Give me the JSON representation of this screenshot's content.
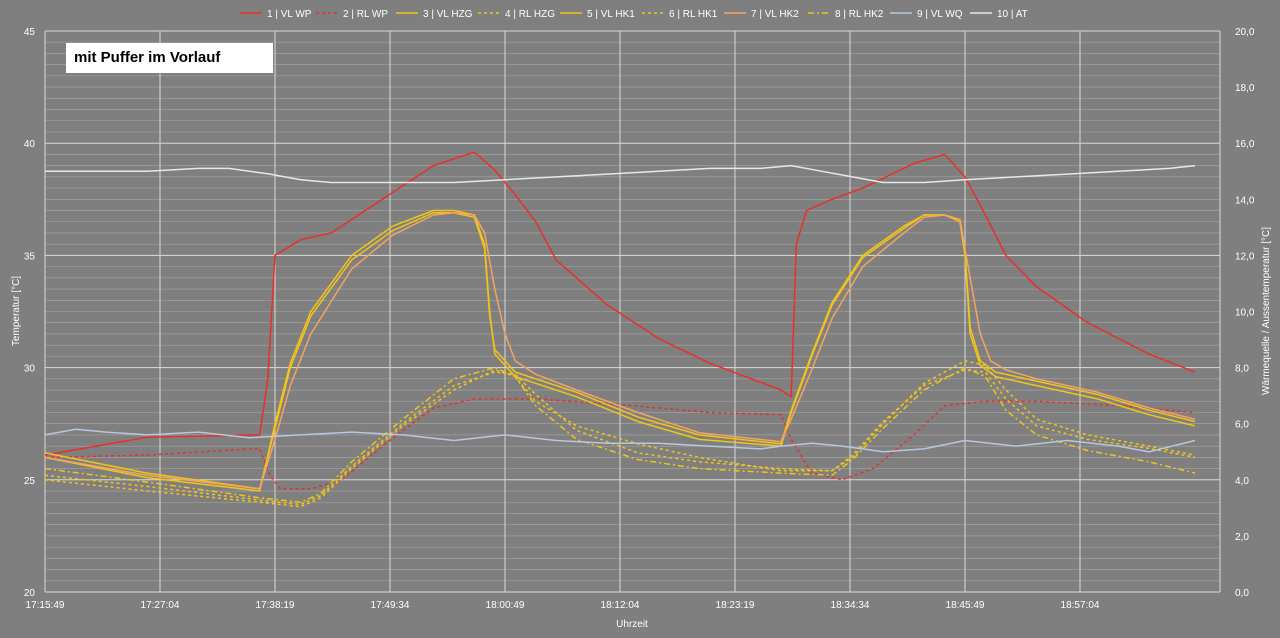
{
  "chart_data": {
    "type": "line",
    "annotation": "mit Puffer im Vorlauf",
    "xlabel": "Uhrzeit",
    "ylabel_left": "Temperatur [°C]",
    "ylabel_right": "Wärmequelle / Aussentemperatur [°C]",
    "ylim_left": [
      20,
      45
    ],
    "ylim_right": [
      0,
      20
    ],
    "left_ticks": [
      "20",
      "25",
      "30",
      "35",
      "40",
      "45"
    ],
    "right_ticks": [
      "0,0",
      "2,0",
      "4,0",
      "6,0",
      "8,0",
      "10,0",
      "12,0",
      "14,0",
      "16,0",
      "18,0",
      "20,0"
    ],
    "x_tick_labels": [
      "17:15:49",
      "17:27:04",
      "17:38:19",
      "17:49:34",
      "18:00:49",
      "18:12:04",
      "18:23:19",
      "18:34:34",
      "18:45:49",
      "18:57:04"
    ],
    "x_unit": "minutes after 17:15:49",
    "xlim": [
      0,
      112.5
    ],
    "legend_position": "top",
    "grid": true,
    "series": [
      {
        "name": "1 | VL WP",
        "color": "#e8302b",
        "dash": "solid",
        "axis": "left",
        "x": [
          0,
          10,
          21,
          21.8,
          22.5,
          25,
          28,
          33,
          38,
          42,
          44,
          46,
          48,
          50,
          55,
          60,
          65,
          72,
          73,
          73.5,
          74.5,
          77,
          80,
          85,
          88,
          90,
          92,
          94,
          97,
          102,
          108,
          112.5
        ],
        "y": [
          26.1,
          26.9,
          27.0,
          29.5,
          35.0,
          35.7,
          36.0,
          37.5,
          39.0,
          39.6,
          38.8,
          37.7,
          36.5,
          34.8,
          32.8,
          31.3,
          30.2,
          29.0,
          28.7,
          35.5,
          37.0,
          37.5,
          38.0,
          39.1,
          39.5,
          38.5,
          36.8,
          35.0,
          33.6,
          32.0,
          30.6,
          29.8
        ]
      },
      {
        "name": "2 | RL WP",
        "color": "#e8302b",
        "dash": "dash",
        "axis": "left",
        "x": [
          0,
          10,
          21,
          22,
          23,
          26,
          29,
          33,
          38,
          42,
          48,
          55,
          65,
          72,
          73,
          75,
          78,
          81,
          85,
          88,
          92,
          97,
          105,
          112.5
        ],
        "y": [
          26.0,
          26.1,
          26.4,
          25.2,
          24.6,
          24.6,
          25.0,
          26.5,
          28.2,
          28.6,
          28.6,
          28.4,
          28.0,
          27.9,
          26.8,
          25.3,
          25.0,
          25.5,
          27.0,
          28.3,
          28.5,
          28.5,
          28.3,
          28.0
        ]
      },
      {
        "name": "3 | VL HZG",
        "color": "#f0c419",
        "dash": "solid",
        "axis": "left",
        "x": [
          0,
          10,
          21,
          22.5,
          24,
          26,
          30,
          34,
          38,
          40,
          42,
          43,
          43.5,
          44,
          46,
          48,
          52,
          58,
          64,
          72,
          73,
          75,
          77,
          80,
          84,
          86,
          88,
          89.5,
          90,
          90.5,
          91.5,
          93,
          97,
          103,
          108,
          112.5
        ],
        "y": [
          26.0,
          25.1,
          24.5,
          27.5,
          30.2,
          32.5,
          35.0,
          36.3,
          37.0,
          37.0,
          36.8,
          35.5,
          32.5,
          30.6,
          29.6,
          29.3,
          28.7,
          27.6,
          26.8,
          26.5,
          28.0,
          30.5,
          32.8,
          34.9,
          36.2,
          36.8,
          36.8,
          36.5,
          35.0,
          31.5,
          30.1,
          29.6,
          29.2,
          28.6,
          27.9,
          27.4
        ]
      },
      {
        "name": "4 | RL HZG",
        "color": "#f0c419",
        "dash": "dash",
        "axis": "left",
        "x": [
          0,
          10,
          21,
          25,
          27,
          30,
          35,
          40,
          44,
          46,
          48,
          52,
          58,
          64,
          72,
          77,
          79,
          82,
          86,
          90,
          92,
          94,
          97,
          102,
          108,
          112.5
        ],
        "y": [
          25.0,
          24.5,
          24.0,
          23.8,
          24.2,
          25.5,
          27.4,
          29.0,
          29.9,
          29.6,
          28.5,
          27.4,
          26.6,
          26.0,
          25.4,
          25.4,
          26.0,
          27.5,
          29.3,
          30.3,
          30.1,
          29.0,
          27.7,
          27.0,
          26.5,
          26.1
        ]
      },
      {
        "name": "5 | VL HK1",
        "color": "#f0c419",
        "dash": "solid",
        "axis": "left",
        "x": [
          0,
          10,
          21,
          22.5,
          24,
          26,
          30,
          34,
          38,
          40,
          42,
          43,
          43.5,
          44,
          46,
          48,
          52,
          58,
          64,
          72,
          73,
          75,
          77,
          80,
          84,
          86,
          88,
          89.5,
          90,
          90.5,
          91.5,
          93,
          97,
          103,
          108,
          112.5
        ],
        "y": [
          26.2,
          25.3,
          24.6,
          27.3,
          30.0,
          32.3,
          34.8,
          36.1,
          36.9,
          36.9,
          36.7,
          35.3,
          32.3,
          30.8,
          29.8,
          29.5,
          28.9,
          27.8,
          27.0,
          26.6,
          28.1,
          30.6,
          32.9,
          35.0,
          36.3,
          36.8,
          36.8,
          36.6,
          35.2,
          31.8,
          30.3,
          29.8,
          29.4,
          28.8,
          28.1,
          27.6
        ]
      },
      {
        "name": "6 | RL HK1",
        "color": "#f0c419",
        "dash": "dash",
        "axis": "left",
        "x": [
          0,
          10,
          21,
          25,
          27,
          30,
          35,
          40,
          44,
          46,
          48,
          52,
          58,
          64,
          72,
          77,
          79,
          82,
          86,
          90,
          92,
          94,
          97,
          102,
          108,
          112.5
        ],
        "y": [
          25.2,
          24.7,
          24.1,
          23.9,
          24.3,
          25.6,
          27.5,
          29.2,
          29.8,
          29.7,
          28.8,
          27.2,
          26.2,
          25.8,
          25.5,
          25.4,
          26.1,
          27.6,
          29.2,
          29.9,
          29.8,
          28.6,
          27.4,
          26.8,
          26.4,
          26.0
        ]
      },
      {
        "name": "7 | VL HK2",
        "color": "#f4a460",
        "dash": "solid",
        "axis": "left",
        "x": [
          0,
          10,
          21,
          22.5,
          24,
          26,
          30,
          34,
          38,
          40,
          42,
          43,
          44,
          45,
          46,
          48,
          52,
          58,
          64,
          72,
          73,
          75,
          77,
          80,
          84,
          86,
          88,
          89.5,
          90.5,
          91.5,
          92.5,
          94,
          97,
          103,
          108,
          112.5
        ],
        "y": [
          26.0,
          25.2,
          24.6,
          26.8,
          29.2,
          31.5,
          34.4,
          35.9,
          36.8,
          36.9,
          36.8,
          36.0,
          33.5,
          31.5,
          30.3,
          29.7,
          29.0,
          28.0,
          27.1,
          26.7,
          27.7,
          29.9,
          32.2,
          34.5,
          36.0,
          36.7,
          36.8,
          36.6,
          34.0,
          31.5,
          30.3,
          29.9,
          29.5,
          28.9,
          28.2,
          27.7
        ]
      },
      {
        "name": "8 | RL HK2",
        "color": "#f0c419",
        "dash": "dashdot",
        "axis": "left",
        "x": [
          0,
          10,
          21,
          25,
          27,
          30,
          35,
          40,
          44,
          46,
          48,
          52,
          58,
          64,
          72,
          77,
          79,
          82,
          86,
          90,
          92,
          94,
          97,
          102,
          108,
          112.5
        ],
        "y": [
          25.5,
          24.9,
          24.2,
          24.0,
          24.4,
          25.8,
          27.7,
          29.5,
          30.0,
          29.6,
          28.3,
          26.8,
          25.9,
          25.5,
          25.3,
          25.2,
          25.9,
          27.3,
          29.0,
          30.0,
          29.6,
          28.1,
          27.0,
          26.3,
          25.8,
          25.3
        ]
      },
      {
        "name": "9 | VL WQ",
        "color": "#b8c7dc",
        "dash": "solid",
        "axis": "right",
        "x": [
          0,
          3,
          6,
          10,
          15,
          20,
          25,
          30,
          35,
          40,
          45,
          50,
          55,
          60,
          65,
          70,
          72,
          75,
          78,
          82,
          86,
          90,
          95,
          100,
          105,
          108,
          112.5
        ],
        "y": [
          5.6,
          5.8,
          5.7,
          5.6,
          5.7,
          5.5,
          5.6,
          5.7,
          5.6,
          5.4,
          5.6,
          5.4,
          5.3,
          5.3,
          5.2,
          5.1,
          5.2,
          5.3,
          5.2,
          5.0,
          5.1,
          5.4,
          5.2,
          5.4,
          5.2,
          5.0,
          5.4
        ]
      },
      {
        "name": "10 | AT",
        "color": "#e8e8e8",
        "dash": "solid",
        "axis": "right",
        "x": [
          0,
          5,
          10,
          15,
          18,
          22,
          25,
          28,
          31,
          35,
          40,
          45,
          50,
          55,
          60,
          65,
          70,
          73,
          76,
          79,
          82,
          86,
          90,
          95,
          100,
          105,
          110,
          112.5
        ],
        "y": [
          15.0,
          15.0,
          15.0,
          15.1,
          15.1,
          14.9,
          14.7,
          14.6,
          14.6,
          14.6,
          14.6,
          14.7,
          14.8,
          14.9,
          15.0,
          15.1,
          15.1,
          15.2,
          15.0,
          14.8,
          14.6,
          14.6,
          14.7,
          14.8,
          14.9,
          15.0,
          15.1,
          15.2
        ]
      }
    ]
  }
}
